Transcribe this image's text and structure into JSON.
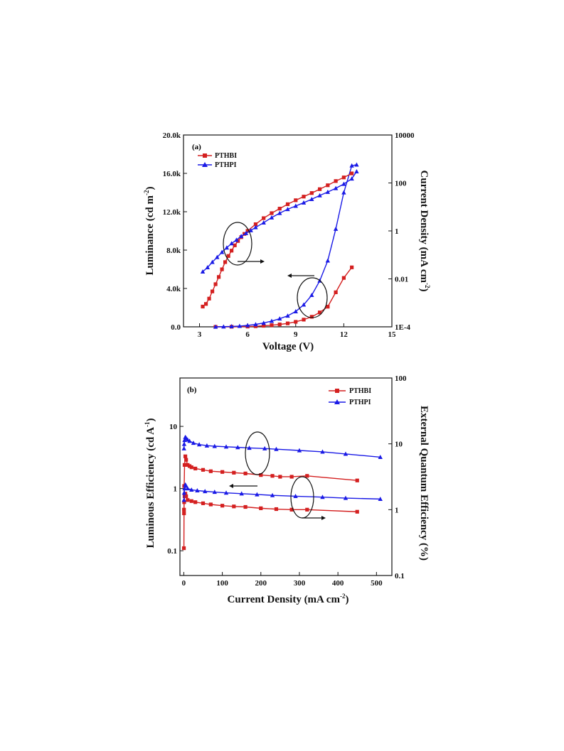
{
  "chart_data": [
    {
      "type": "line",
      "panel_label": "(a)",
      "xlabel": "Voltage (V)",
      "ylabel_left": "Luminance (cd m",
      "ylabel_left_sup": "-2",
      "ylabel_left_end": ")",
      "ylabel_right": "Current Density (mA cm",
      "ylabel_right_sup": "-2",
      "ylabel_right_end": ")",
      "xlim": [
        2,
        15
      ],
      "ylim_left": [
        0,
        20000
      ],
      "ylim_right": [
        0.0001,
        10000
      ],
      "y_right_scale": "log",
      "x_ticks": [
        "3",
        "6",
        "9",
        "12",
        "15"
      ],
      "y_left_ticks": [
        "0.0",
        "4.0k",
        "8.0k",
        "12.0k",
        "16.0k",
        "20.0k"
      ],
      "y_right_ticks": [
        "1E-4",
        "0.01",
        "1",
        "100",
        "10000"
      ],
      "legend_position": "top-left",
      "series": [
        {
          "name": "PTHBI",
          "color": "#d42020",
          "marker": "square",
          "axis": "left",
          "kind": "luminance",
          "x": [
            4.0,
            5.0,
            6.0,
            6.5,
            7.0,
            7.5,
            8.0,
            8.5,
            9.0,
            9.5,
            10.0,
            10.5,
            11.0,
            11.5,
            12.0,
            12.5
          ],
          "y": [
            0,
            10,
            30,
            60,
            110,
            170,
            250,
            360,
            520,
            750,
            1050,
            1500,
            2100,
            3600,
            5100,
            6200
          ]
        },
        {
          "name": "PTHPI",
          "color": "#1a1ae6",
          "marker": "triangle",
          "axis": "left",
          "kind": "luminance",
          "x": [
            4.0,
            4.5,
            5.0,
            5.5,
            6.0,
            6.5,
            7.0,
            7.5,
            8.0,
            8.5,
            9.0,
            9.5,
            10.0,
            10.5,
            11.0,
            11.5,
            12.0,
            12.5,
            12.8
          ],
          "y": [
            0,
            20,
            40,
            80,
            150,
            250,
            400,
            600,
            850,
            1150,
            1600,
            2300,
            3300,
            4800,
            6900,
            10200,
            14000,
            16800,
            16900
          ]
        },
        {
          "name": "PTHBI",
          "color": "#d42020",
          "marker": "square",
          "axis": "right",
          "kind": "current",
          "x": [
            3.2,
            3.4,
            3.6,
            3.8,
            4.0,
            4.2,
            4.4,
            4.6,
            4.8,
            5.0,
            5.2,
            5.4,
            5.6,
            5.8,
            6.0,
            6.5,
            7.0,
            7.5,
            8.0,
            8.5,
            9.0,
            9.5,
            10.0,
            10.5,
            11.0,
            11.5,
            12.0,
            12.5
          ],
          "y": [
            0.0007,
            0.0009,
            0.0015,
            0.003,
            0.006,
            0.012,
            0.025,
            0.05,
            0.09,
            0.15,
            0.25,
            0.38,
            0.55,
            0.75,
            1.0,
            1.9,
            3.4,
            5.5,
            8.5,
            13,
            19,
            27,
            38,
            55,
            80,
            120,
            170,
            250
          ]
        },
        {
          "name": "PTHPI",
          "color": "#1a1ae6",
          "marker": "triangle",
          "axis": "right",
          "kind": "current",
          "x": [
            3.2,
            3.5,
            3.8,
            4.1,
            4.4,
            4.7,
            5.0,
            5.3,
            5.6,
            5.9,
            6.2,
            6.5,
            7.0,
            7.5,
            8.0,
            8.5,
            9.0,
            9.5,
            10.0,
            10.5,
            11.0,
            11.5,
            12.0,
            12.5,
            12.8
          ],
          "y": [
            0.02,
            0.03,
            0.05,
            0.08,
            0.13,
            0.2,
            0.3,
            0.42,
            0.6,
            0.8,
            1.05,
            1.4,
            2.2,
            3.6,
            5.5,
            8,
            11,
            15,
            21,
            30,
            42,
            60,
            90,
            150,
            300
          ]
        }
      ]
    },
    {
      "type": "line",
      "panel_label": "(b)",
      "xlabel": "Current Density (mA cm",
      "xlabel_sup": "-2",
      "xlabel_end": ")",
      "ylabel_left": "Luminous Efficiency (cd A",
      "ylabel_left_sup": "-1",
      "ylabel_left_end": ")",
      "ylabel_right": "External Quantum Efficiency (%)",
      "xlim": [
        -10,
        540
      ],
      "ylim_left": [
        0.04,
        60
      ],
      "ylim_right": [
        0.1,
        100
      ],
      "y_left_scale": "log",
      "y_right_scale": "log",
      "x_ticks": [
        "0",
        "100",
        "200",
        "300",
        "400",
        "500"
      ],
      "y_left_ticks": [
        "0.1",
        "1",
        "10"
      ],
      "y_right_ticks": [
        "0.1",
        "1",
        "10",
        "100"
      ],
      "legend_position": "top-right",
      "series": [
        {
          "name": "PTHBI",
          "color": "#d42020",
          "marker": "square",
          "axis": "left",
          "kind": "LE",
          "x": [
            0.3,
            0.6,
            1,
            2,
            4,
            6,
            10,
            15,
            20,
            30,
            50,
            70,
            100,
            130,
            160,
            200,
            230,
            250,
            280,
            320,
            450
          ],
          "y": [
            0.11,
            0.4,
            1.1,
            2.4,
            3.3,
            2.9,
            2.4,
            2.3,
            2.2,
            2.1,
            2.0,
            1.9,
            1.85,
            1.8,
            1.75,
            1.65,
            1.6,
            1.55,
            1.55,
            1.6,
            1.35
          ]
        },
        {
          "name": "PTHPI",
          "color": "#1a1ae6",
          "marker": "triangle",
          "axis": "left",
          "kind": "LE",
          "x": [
            0.5,
            1,
            2,
            4,
            6,
            10,
            15,
            25,
            40,
            60,
            80,
            110,
            140,
            170,
            210,
            240,
            300,
            360,
            420,
            510
          ],
          "y": [
            4.4,
            5.2,
            6.0,
            6.7,
            6.5,
            6.1,
            5.8,
            5.4,
            5.1,
            4.9,
            4.8,
            4.7,
            4.6,
            4.5,
            4.4,
            4.3,
            4.1,
            3.9,
            3.6,
            3.2
          ]
        },
        {
          "name": "PTHBI",
          "color": "#d42020",
          "marker": "square",
          "axis": "right",
          "kind": "EQE",
          "x": [
            0.5,
            1,
            2,
            4,
            6,
            10,
            20,
            30,
            50,
            70,
            100,
            130,
            160,
            200,
            240,
            280,
            320,
            450
          ],
          "y": [
            1.0,
            1.3,
            1.6,
            1.75,
            1.6,
            1.4,
            1.35,
            1.3,
            1.25,
            1.2,
            1.15,
            1.12,
            1.1,
            1.05,
            1.02,
            1.0,
            1.0,
            0.93
          ]
        },
        {
          "name": "PTHPI",
          "color": "#1a1ae6",
          "marker": "triangle",
          "axis": "right",
          "kind": "EQE",
          "x": [
            0.5,
            1,
            2,
            4,
            6,
            10,
            20,
            35,
            55,
            80,
            110,
            150,
            190,
            230,
            290,
            360,
            420,
            510
          ],
          "y": [
            1.4,
            1.8,
            2.1,
            2.4,
            2.3,
            2.1,
            2.0,
            1.95,
            1.9,
            1.85,
            1.8,
            1.75,
            1.7,
            1.65,
            1.6,
            1.55,
            1.5,
            1.45
          ]
        }
      ]
    }
  ]
}
